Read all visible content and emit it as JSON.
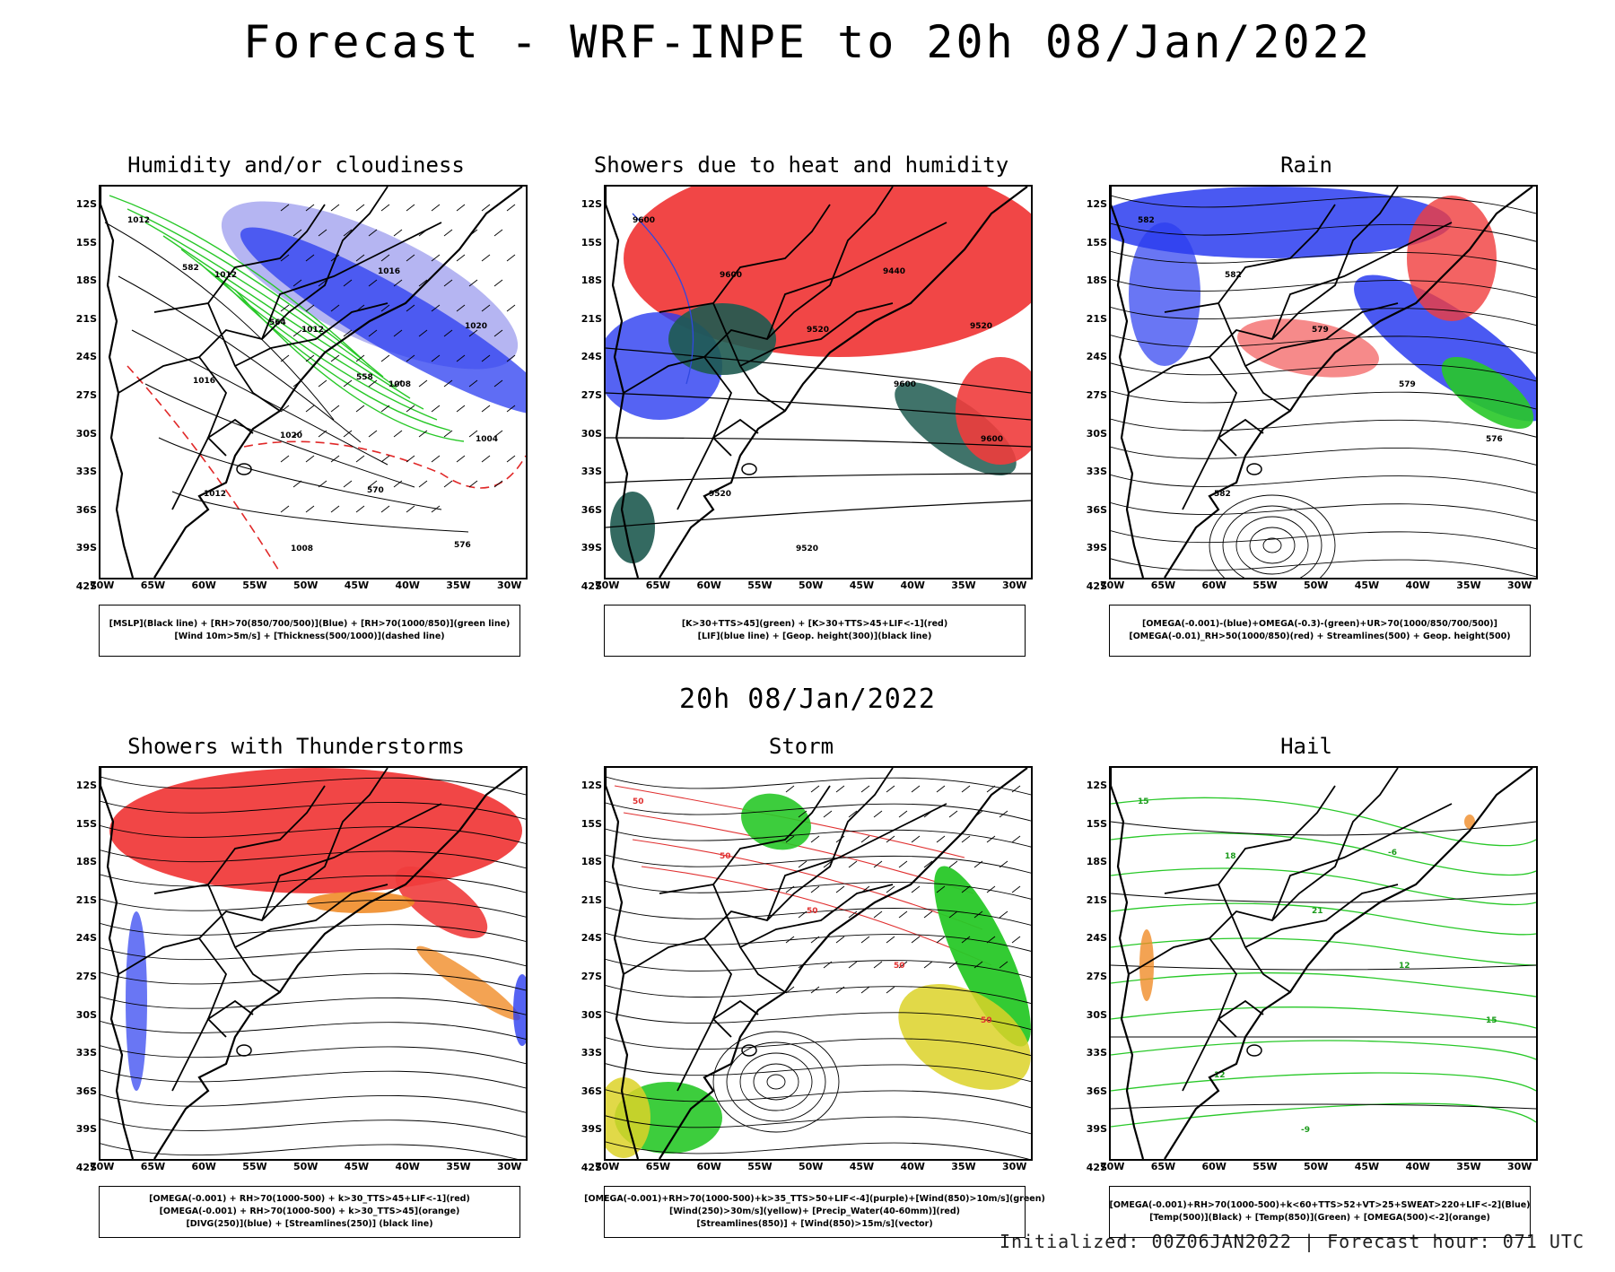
{
  "main_title": "Forecast - WRF-INPE to 20h 08/Jan/2022",
  "mid_title": "20h 08/Jan/2022",
  "footer": "Initialized: 00Z06JAN2022 | Forecast hour: 071 UTC",
  "axes": {
    "y_ticks": [
      "12S",
      "15S",
      "18S",
      "21S",
      "24S",
      "27S",
      "30S",
      "33S",
      "36S",
      "39S",
      "42S"
    ],
    "x_ticks": [
      "70W",
      "65W",
      "60W",
      "55W",
      "50W",
      "45W",
      "40W",
      "35W",
      "30W"
    ]
  },
  "colors": {
    "red": "#f03c3c",
    "blue": "#2a3cf0",
    "green": "#28c828",
    "lightblue": "#a8a8f0",
    "darkgreen": "#1e5a50",
    "orange": "#f08c28",
    "yellow": "#dcd228",
    "purple": "#8c3cc8"
  },
  "panels": [
    {
      "title": "Humidity and/or cloudiness",
      "legend": [
        "[MSLP](Black line) + [RH>70(850/700/500)](Blue) + [RH>70(1000/850)](green line)",
        "[Wind 10m>5m/s] + [Thickness(500/1000)](dashed line)"
      ],
      "labels": [
        "1012",
        "1012",
        "1012",
        "1008",
        "1004",
        "1012",
        "1008",
        "1016",
        "1020",
        "1016",
        "1020",
        "570",
        "576",
        "582",
        "564",
        "558"
      ]
    },
    {
      "title": "Showers due to heat and humidity",
      "legend": [
        "[K>30+TTS>45](green) + [K>30+TTS>45+LIF<-1](red)",
        "[LIF](blue line) + [Geop. height(300)](black line)"
      ],
      "labels": [
        "9600",
        "9600",
        "9520",
        "9600",
        "9600",
        "9520",
        "9520",
        "9440",
        "9520"
      ]
    },
    {
      "title": "Rain",
      "legend": [
        "[OMEGA(-0.001)-(blue)+OMEGA(-0.3)-(green)+UR>70(1000/850/700/500)]",
        "[OMEGA(-0.01)_RH>50(1000/850)(red) + Streamlines(500) + Geop. height(500)"
      ],
      "labels": [
        "582",
        "582",
        "579",
        "579",
        "576",
        "582"
      ]
    },
    {
      "title": "Showers with Thunderstorms",
      "legend": [
        "[OMEGA(-0.001) + RH>70(1000-500) + k>30_TTS>45+LIF<-1](red)",
        "[OMEGA(-0.001) + RH>70(1000-500) + k>30_TTS>45](orange)",
        "[DIVG(250)](blue) + [Streamlines(250)] (black line)"
      ],
      "labels": []
    },
    {
      "title": "Storm",
      "legend": [
        "[OMEGA(-0.001)+RH>70(1000-500)+k>35_TTS>50+LIF<-4](purple)+[Wind(850)>10m/s](green)",
        "[Wind(250)>30m/s](yellow)+ [Precip_Water(40-60mm)](red)",
        "[Streamlines(850)] + [Wind(850)>15m/s](vector)"
      ],
      "labels": [
        "50",
        "50",
        "50",
        "50",
        "50"
      ]
    },
    {
      "title": "Hail",
      "legend": [
        "[OMEGA(-0.001)+RH>70(1000-500)+k<60+TTS>52+VT>25+SWEAT>220+LIF<-2](Blue)",
        "[Temp(500)](Black) + [Temp(850)](Green) + [OMEGA(500)<-2](orange)"
      ],
      "labels": [
        "15",
        "18",
        "21",
        "12",
        "15",
        "12",
        "-9",
        "-6"
      ]
    }
  ]
}
